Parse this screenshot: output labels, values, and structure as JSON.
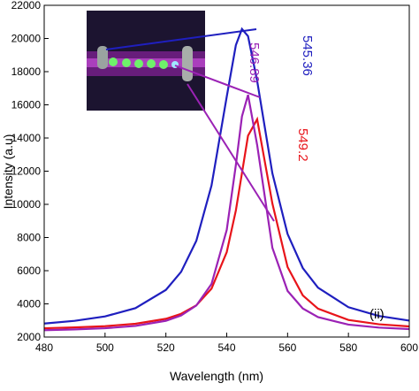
{
  "chart_data": {
    "type": "line",
    "x_label": "Wavelength (nm)",
    "y_label": "Intensity (a.u)",
    "x": [
      480,
      490,
      500,
      510,
      520,
      525,
      530,
      535,
      540,
      543,
      545,
      547,
      550,
      555,
      560,
      565,
      570,
      580,
      590,
      600
    ],
    "series": [
      {
        "color": "#1f1fbf",
        "values": [
          2815,
          2975,
          3243,
          3743,
          4840,
          5930,
          7800,
          11140,
          16490,
          19600,
          20570,
          20140,
          17440,
          11870,
          8210,
          6160,
          4980,
          3800,
          3270,
          2990
        ]
      },
      {
        "color": "#e8141a",
        "values": [
          2530,
          2580,
          2655,
          2800,
          3100,
          3400,
          3910,
          4920,
          7120,
          9630,
          11880,
          14140,
          15130,
          10050,
          6220,
          4510,
          3710,
          3030,
          2770,
          2640
        ]
      },
      {
        "color": "#9b22b5",
        "values": [
          2415,
          2460,
          2530,
          2670,
          2980,
          3300,
          3900,
          5200,
          8460,
          12370,
          15300,
          16600,
          13580,
          7380,
          4780,
          3720,
          3200,
          2750,
          2570,
          2480
        ]
      }
    ],
    "annotations": [
      {
        "text": "545.36",
        "color": "#1f1fbf"
      },
      {
        "text": "546.89",
        "color": "#9b22b5"
      },
      {
        "text": "549.2",
        "color": "#e8141a"
      },
      {
        "text": "(ii)",
        "color": "#000000"
      }
    ],
    "xlim": [
      480,
      600
    ],
    "xticks": [
      480,
      500,
      520,
      540,
      560,
      580,
      600
    ],
    "ylim": [
      2000,
      22000
    ],
    "yticks": [
      2000,
      4000,
      6000,
      8000,
      10000,
      12000,
      14000,
      16000,
      18000,
      20000,
      22000
    ]
  }
}
